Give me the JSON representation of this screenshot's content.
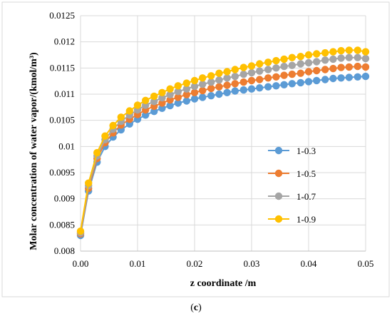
{
  "caption": {
    "open": "(",
    "letter": "c",
    "close": ")"
  },
  "chart_data": {
    "type": "scatter",
    "xlabel": "z coordinate /m",
    "ylabel": "Molar concentration of water vapor/(kmol/m³)",
    "xlim": [
      0,
      0.05
    ],
    "ylim": [
      0.008,
      0.0125
    ],
    "x_ticks": [
      "0.00",
      "0.01",
      "0.02",
      "0.03",
      "0.04",
      "0.05"
    ],
    "y_ticks": [
      "0.008",
      "0.0085",
      "0.009",
      "0.0095",
      "0.01",
      "0.0105",
      "0.011",
      "0.0115",
      "0.012",
      "0.0125"
    ],
    "grid": "major-both",
    "legend_position": "right-middle",
    "marker": "circle",
    "x": [
      0.0,
      0.0014,
      0.0029,
      0.0043,
      0.0057,
      0.0071,
      0.0086,
      0.01,
      0.0114,
      0.0129,
      0.0143,
      0.0157,
      0.0171,
      0.0186,
      0.02,
      0.0214,
      0.0229,
      0.0243,
      0.0257,
      0.0271,
      0.0286,
      0.03,
      0.0314,
      0.0329,
      0.0343,
      0.0357,
      0.0371,
      0.0386,
      0.04,
      0.0414,
      0.0429,
      0.0443,
      0.0457,
      0.0471,
      0.0486,
      0.05
    ],
    "series": [
      {
        "name": "1-0.3",
        "color": "#5B9BD5",
        "values": [
          0.0083,
          0.00915,
          0.0097,
          0.01,
          0.01018,
          0.01032,
          0.01043,
          0.01052,
          0.0106,
          0.01067,
          0.01073,
          0.01078,
          0.01083,
          0.01087,
          0.01091,
          0.01094,
          0.01097,
          0.011,
          0.01103,
          0.01106,
          0.01108,
          0.0111,
          0.01112,
          0.01114,
          0.01116,
          0.01118,
          0.0112,
          0.01122,
          0.01124,
          0.01126,
          0.01128,
          0.0113,
          0.01131,
          0.01132,
          0.01133,
          0.01134
        ]
      },
      {
        "name": "1-0.5",
        "color": "#ED7D31",
        "values": [
          0.00833,
          0.0092,
          0.00977,
          0.01007,
          0.01026,
          0.01041,
          0.01052,
          0.01061,
          0.0107,
          0.01077,
          0.01083,
          0.01089,
          0.01094,
          0.01099,
          0.01103,
          0.01107,
          0.01111,
          0.01114,
          0.01117,
          0.0112,
          0.01123,
          0.01126,
          0.01128,
          0.01131,
          0.01133,
          0.01136,
          0.01138,
          0.0114,
          0.01143,
          0.01145,
          0.01147,
          0.01149,
          0.01151,
          0.01152,
          0.01153,
          0.01152
        ]
      },
      {
        "name": "1-0.7",
        "color": "#A5A5A5",
        "values": [
          0.00835,
          0.00925,
          0.00982,
          0.01013,
          0.01033,
          0.01048,
          0.0106,
          0.0107,
          0.01079,
          0.01086,
          0.01093,
          0.01099,
          0.01105,
          0.0111,
          0.01115,
          0.01119,
          0.01123,
          0.01127,
          0.01131,
          0.01134,
          0.01138,
          0.01141,
          0.01144,
          0.01147,
          0.0115,
          0.01153,
          0.01155,
          0.01158,
          0.0116,
          0.01162,
          0.01165,
          0.01167,
          0.01169,
          0.0117,
          0.0117,
          0.01168
        ]
      },
      {
        "name": "1-0.9",
        "color": "#FFC000",
        "values": [
          0.00838,
          0.0093,
          0.00988,
          0.0102,
          0.0104,
          0.01056,
          0.01068,
          0.01079,
          0.01088,
          0.01096,
          0.01103,
          0.0111,
          0.01116,
          0.01121,
          0.01126,
          0.01131,
          0.01135,
          0.0114,
          0.01143,
          0.01147,
          0.01151,
          0.01154,
          0.01158,
          0.01161,
          0.01164,
          0.01167,
          0.0117,
          0.01172,
          0.01175,
          0.01177,
          0.01179,
          0.01181,
          0.01183,
          0.01184,
          0.01184,
          0.01181
        ]
      }
    ]
  }
}
